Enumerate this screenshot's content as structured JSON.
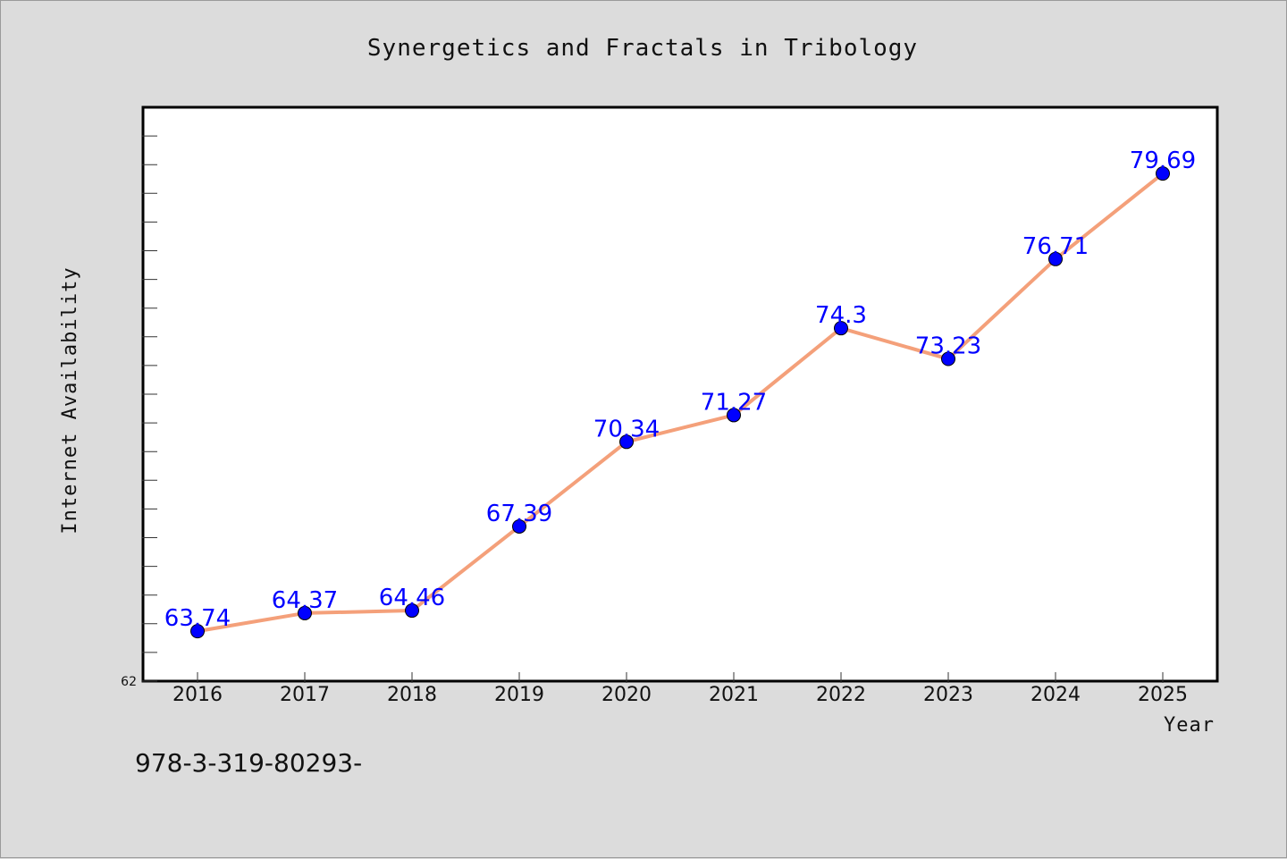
{
  "chart_data": {
    "type": "line",
    "title": "Synergetics and Fractals in Tribology",
    "xlabel": "Year",
    "ylabel": "Internet Availability",
    "x": [
      "2016",
      "2017",
      "2018",
      "2019",
      "2020",
      "2021",
      "2022",
      "2023",
      "2024",
      "2025"
    ],
    "series": [
      {
        "values": [
          63.74,
          64.37,
          64.46,
          67.39,
          70.34,
          71.27,
          74.3,
          73.23,
          76.71,
          79.69
        ],
        "labels": [
          "63.74",
          "64.37",
          "64.46",
          "67.39",
          "70.34",
          "71.27",
          "74.3",
          "73.23",
          "76.71",
          "79.69"
        ],
        "line_color": "#f4a07a",
        "marker_color": "#0000ff"
      }
    ],
    "ylim": [
      62,
      82
    ],
    "ytick_labels": [
      "62"
    ],
    "grid": false,
    "plot_background": "#ffffff",
    "figure_background": "#dcdcdc"
  },
  "footer": {
    "isbn": "978-3-319-80293-"
  }
}
